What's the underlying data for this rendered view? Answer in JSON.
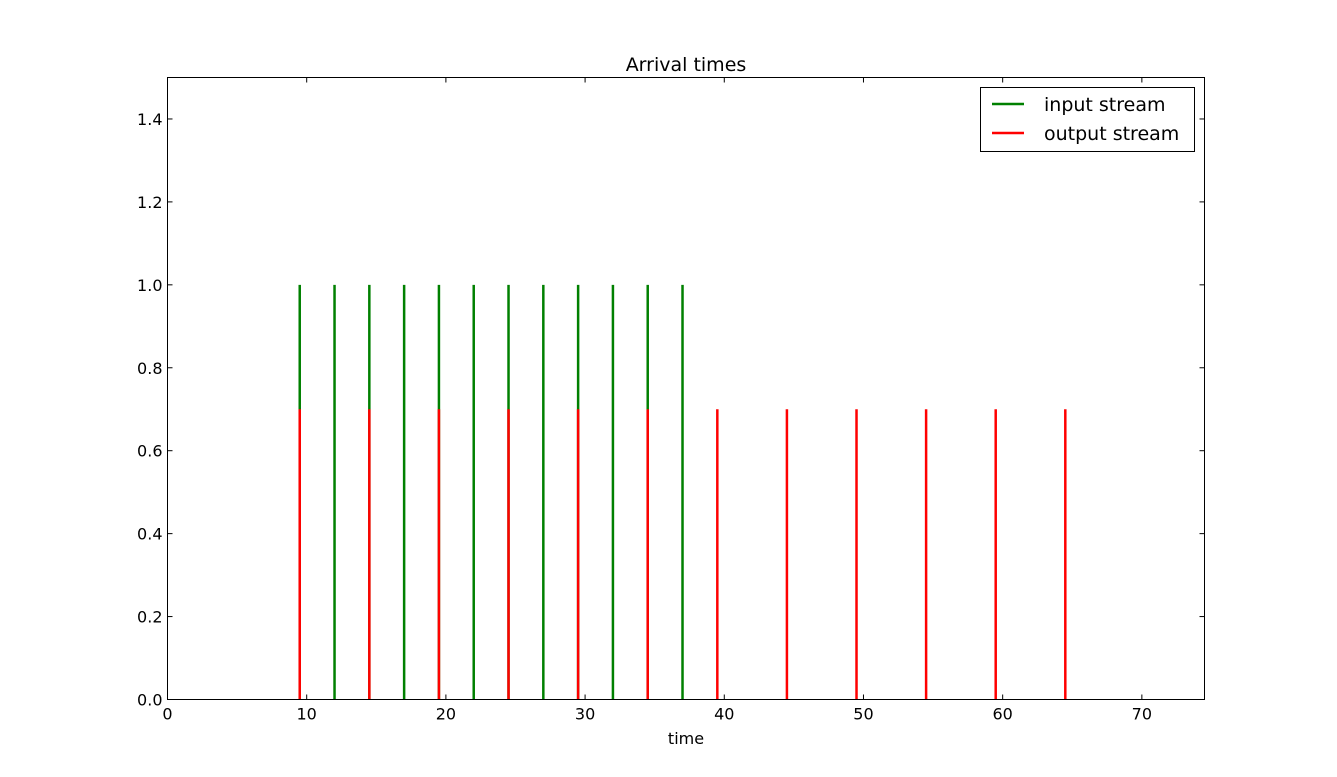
{
  "chart_data": {
    "type": "stem",
    "title": "Arrival times",
    "xlabel": "time",
    "ylabel": "",
    "xlim": [
      0,
      74.5
    ],
    "ylim": [
      0,
      1.5
    ],
    "xticks": [
      0,
      10,
      20,
      30,
      40,
      50,
      60,
      70
    ],
    "yticks": [
      0.0,
      0.2,
      0.4,
      0.6,
      0.8,
      1.0,
      1.2,
      1.4
    ],
    "xtick_labels": [
      "0",
      "10",
      "20",
      "30",
      "40",
      "50",
      "60",
      "70"
    ],
    "ytick_labels": [
      "0.0",
      "0.2",
      "0.4",
      "0.6",
      "0.8",
      "1.0",
      "1.2",
      "1.4"
    ],
    "grid": false,
    "legend_position": "top-right",
    "series": [
      {
        "name": "input stream",
        "color": "#008000",
        "height": 1.0,
        "x": [
          9.5,
          12.0,
          14.5,
          17.0,
          19.5,
          22.0,
          24.5,
          27.0,
          29.5,
          32.0,
          34.5,
          37.0
        ]
      },
      {
        "name": "output stream",
        "color": "#ff0000",
        "height": 0.7,
        "x": [
          9.5,
          14.5,
          19.5,
          24.5,
          29.5,
          34.5,
          39.5,
          44.5,
          49.5,
          54.5,
          59.5,
          64.5
        ]
      }
    ]
  }
}
